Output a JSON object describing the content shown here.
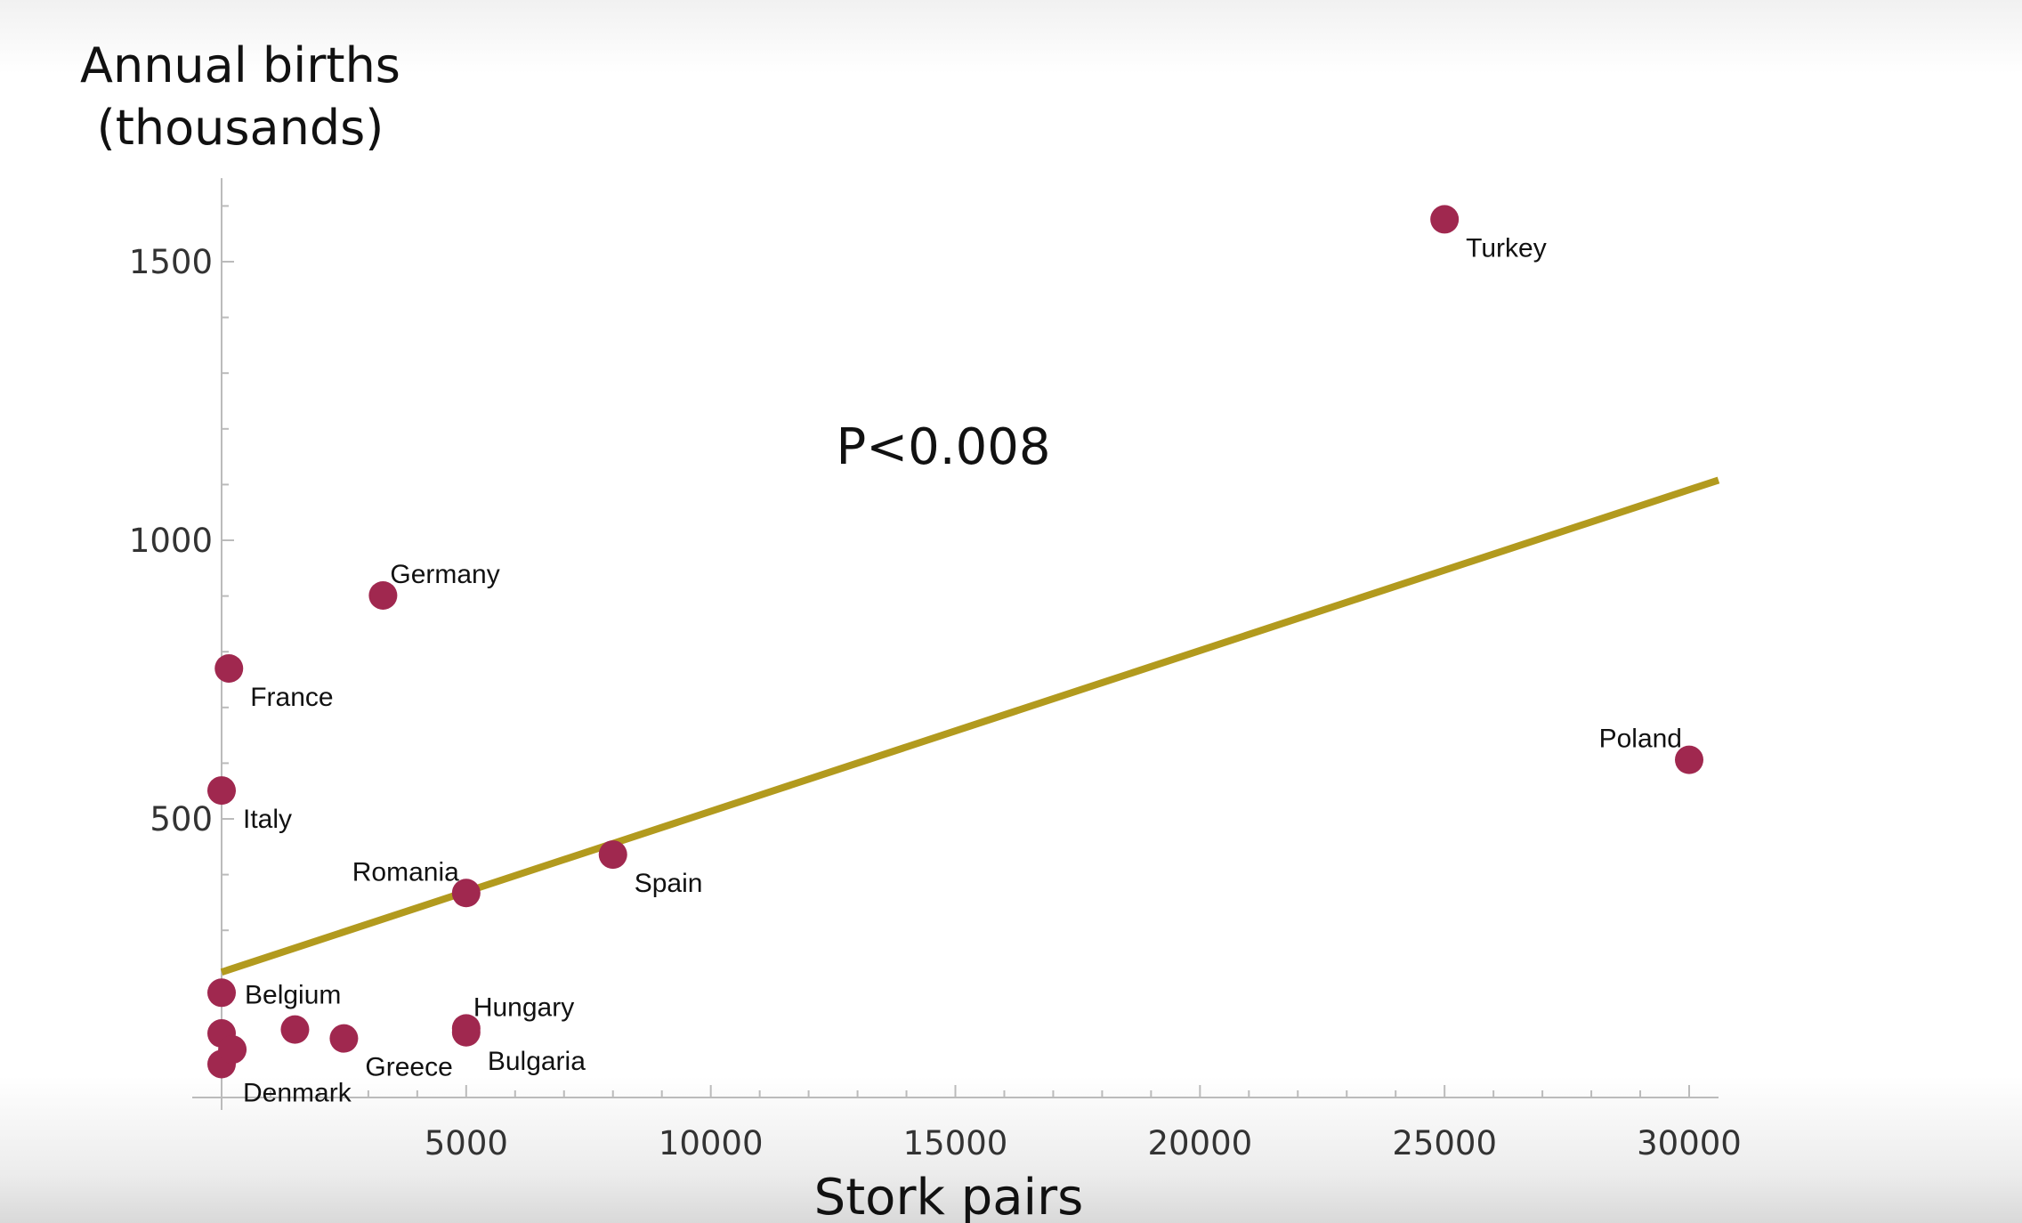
{
  "chart_data": {
    "type": "scatter",
    "title": "",
    "ylabel_lines": [
      "Annual births",
      "(thousands)"
    ],
    "xlabel": "Stork pairs",
    "annotation": "P<0.008",
    "xlim": [
      -600,
      30600
    ],
    "ylim": [
      0,
      1650
    ],
    "xticks": [
      {
        "value": 5000,
        "label": "5000"
      },
      {
        "value": 10000,
        "label": "10000"
      },
      {
        "value": 15000,
        "label": "15000"
      },
      {
        "value": 20000,
        "label": "20000"
      },
      {
        "value": 25000,
        "label": "25000"
      },
      {
        "value": 30000,
        "label": "30000"
      }
    ],
    "yticks": [
      {
        "value": 500,
        "label": "500"
      },
      {
        "value": 1000,
        "label": "1000"
      },
      {
        "value": 1500,
        "label": "1500"
      }
    ],
    "x_minor_step": 1000,
    "y_minor_step": 100,
    "point_color": "#a0284f",
    "fit_color": "#b29a1e",
    "axis_color": "#bbbbbb",
    "fit_line": {
      "x": [
        0,
        30600
      ],
      "y": [
        225,
        1108
      ]
    },
    "points": [
      {
        "x": 25000,
        "y": 1576,
        "label": "Turkey",
        "label_pos": "below-right"
      },
      {
        "x": 3300,
        "y": 901,
        "label": "Germany",
        "label_pos": "above-right"
      },
      {
        "x": 150,
        "y": 770,
        "label": "France",
        "label_pos": "below-right"
      },
      {
        "x": 30000,
        "y": 606,
        "label": "Poland",
        "label_pos": "above-left"
      },
      {
        "x": 0,
        "y": 551,
        "label": "Italy",
        "label_pos": "below-right"
      },
      {
        "x": 8000,
        "y": 436,
        "label": "Spain",
        "label_pos": "below-right"
      },
      {
        "x": 5000,
        "y": 367,
        "label": "Romania",
        "label_pos": "above-left"
      },
      {
        "x": 0,
        "y": 188,
        "label": "Belgium",
        "label_pos": "right"
      },
      {
        "x": 5000,
        "y": 124,
        "label": "Hungary",
        "label_pos": "above-right"
      },
      {
        "x": 5000,
        "y": 117,
        "label": "Bulgaria",
        "label_pos": "below-right"
      },
      {
        "x": 2500,
        "y": 106,
        "label": "Greece",
        "label_pos": "below-right"
      },
      {
        "x": 0,
        "y": 60,
        "label": "Denmark",
        "label_pos": "below-right"
      },
      {
        "x": 1500,
        "y": 122,
        "label": "",
        "label_pos": "none"
      },
      {
        "x": 0,
        "y": 115,
        "label": "",
        "label_pos": "none"
      },
      {
        "x": 220,
        "y": 86,
        "label": "",
        "label_pos": "none"
      }
    ]
  }
}
